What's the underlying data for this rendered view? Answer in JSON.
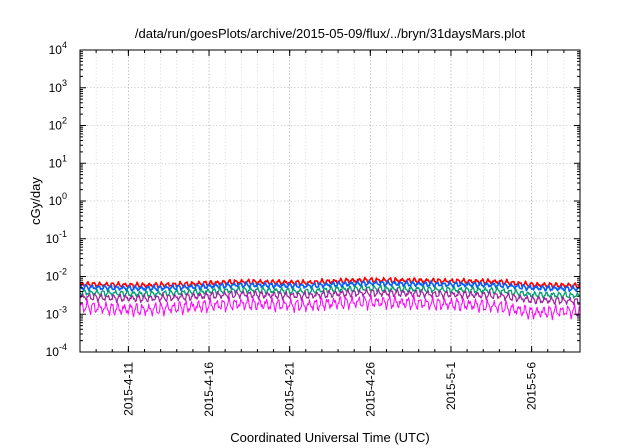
{
  "chart_data": {
    "type": "line",
    "title": "/data/run/goesPlots/archive/2015-05-09/flux/../bryn/31daysMars.plot",
    "xlabel": "Coordinated Universal Time (UTC)",
    "ylabel": "cGy/day",
    "yscale": "log",
    "ylim": [
      0.0001,
      10000
    ],
    "xlim": [
      "2015-04-08",
      "2015-05-09"
    ],
    "grid": true,
    "legend": "none",
    "x_ticks": [
      "2015-4-11",
      "2015-4-16",
      "2015-4-21",
      "2015-4-26",
      "2015-5-1",
      "2015-5-6"
    ],
    "y_ticks": [
      {
        "base": "10",
        "exp": "-4",
        "value": 0.0001
      },
      {
        "base": "10",
        "exp": "-3",
        "value": 0.001
      },
      {
        "base": "10",
        "exp": "-2",
        "value": 0.01
      },
      {
        "base": "10",
        "exp": "-1",
        "value": 0.1
      },
      {
        "base": "10",
        "exp": "0",
        "value": 1
      },
      {
        "base": "10",
        "exp": "1",
        "value": 10
      },
      {
        "base": "10",
        "exp": "2",
        "value": 100
      },
      {
        "base": "10",
        "exp": "3",
        "value": 1000
      },
      {
        "base": "10",
        "exp": "4",
        "value": 10000
      }
    ],
    "x_dates": [
      "2015-04-08",
      "2015-04-10",
      "2015-04-12",
      "2015-04-14",
      "2015-04-16",
      "2015-04-18",
      "2015-04-20",
      "2015-04-22",
      "2015-04-24",
      "2015-04-26",
      "2015-04-28",
      "2015-04-30",
      "2015-05-02",
      "2015-05-04",
      "2015-05-06",
      "2015-05-08",
      "2015-05-09"
    ],
    "series": [
      {
        "color": "#ff0000",
        "values": [
          0.0062,
          0.006,
          0.0058,
          0.0061,
          0.0066,
          0.0072,
          0.007,
          0.0068,
          0.0075,
          0.008,
          0.0078,
          0.0076,
          0.0074,
          0.0072,
          0.006,
          0.0058,
          0.0057
        ]
      },
      {
        "color": "#0060ff",
        "values": [
          0.0052,
          0.005,
          0.0048,
          0.0051,
          0.0055,
          0.006,
          0.0058,
          0.0056,
          0.0062,
          0.0066,
          0.0064,
          0.0062,
          0.0061,
          0.0059,
          0.005,
          0.0048,
          0.0047
        ]
      },
      {
        "color": "#00a070",
        "values": [
          0.0038,
          0.0036,
          0.0034,
          0.0037,
          0.004,
          0.0044,
          0.0042,
          0.004,
          0.0046,
          0.0048,
          0.0046,
          0.0045,
          0.0044,
          0.0042,
          0.0033,
          0.0032,
          0.0031
        ]
      },
      {
        "color": "#a020a0",
        "values": [
          0.0029,
          0.0027,
          0.0026,
          0.0028,
          0.0031,
          0.0034,
          0.0032,
          0.0031,
          0.0035,
          0.0037,
          0.0036,
          0.0034,
          0.0033,
          0.0031,
          0.0024,
          0.0023,
          0.0022
        ]
      },
      {
        "color": "#ff00ff",
        "values": [
          0.0016,
          0.0014,
          0.0013,
          0.0015,
          0.0017,
          0.0019,
          0.0018,
          0.0017,
          0.002,
          0.0021,
          0.002,
          0.0019,
          0.0018,
          0.0016,
          0.0011,
          0.0012,
          0.0012
        ]
      }
    ]
  }
}
